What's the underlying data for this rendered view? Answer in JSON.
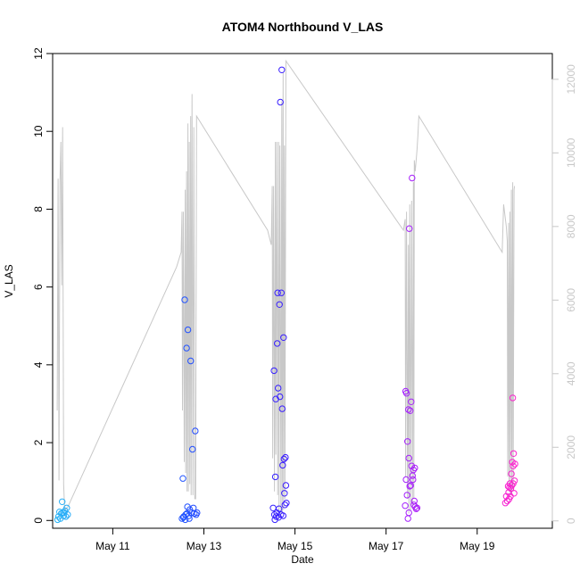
{
  "chart_data": {
    "type": "scatter",
    "title": "ATOM4 Northbound V_LAS",
    "xlabel": "Date",
    "ylabel": "V_LAS",
    "xlim": [
      9.68,
      20.65
    ],
    "ylim": [
      -0.2,
      12.0
    ],
    "yticks": [
      0,
      2,
      4,
      6,
      8,
      10,
      12
    ],
    "xticks": [
      {
        "value": 11,
        "label": "May 11"
      },
      {
        "value": 13,
        "label": "May 13"
      },
      {
        "value": 15,
        "label": "May 15"
      },
      {
        "value": 17,
        "label": "May 17"
      },
      {
        "value": 19,
        "label": "May 19"
      }
    ],
    "y2_range": [
      -200,
      12700
    ],
    "y2ticks": [
      0,
      2000,
      4000,
      6000,
      8000,
      10000,
      12000
    ],
    "grid": false,
    "color_gradient": [
      "#29b6f6",
      "#1e5bff",
      "#3a1cff",
      "#a020ff",
      "#ff22cc"
    ],
    "points": [
      [
        9.79,
        0.02
      ],
      [
        9.81,
        0.1
      ],
      [
        9.83,
        0.22
      ],
      [
        9.85,
        0.05
      ],
      [
        9.87,
        0.18
      ],
      [
        9.89,
        0.48
      ],
      [
        9.9,
        0.2
      ],
      [
        9.92,
        0.12
      ],
      [
        9.93,
        0.2
      ],
      [
        9.95,
        0.25
      ],
      [
        9.97,
        0.1
      ],
      [
        9.99,
        0.32
      ],
      [
        10.01,
        0.15
      ],
      [
        12.52,
        0.05
      ],
      [
        12.54,
        1.08
      ],
      [
        12.56,
        0.1
      ],
      [
        12.58,
        5.67
      ],
      [
        12.6,
        0.15
      ],
      [
        12.62,
        4.43
      ],
      [
        12.64,
        0.35
      ],
      [
        12.65,
        4.9
      ],
      [
        12.67,
        0.12
      ],
      [
        12.69,
        0.28
      ],
      [
        12.71,
        4.1
      ],
      [
        12.73,
        0.2
      ],
      [
        12.75,
        1.83
      ],
      [
        12.77,
        0.32
      ],
      [
        12.79,
        0.18
      ],
      [
        12.81,
        2.3
      ],
      [
        12.83,
        0.15
      ],
      [
        12.85,
        0.2
      ],
      [
        12.55,
        0.08
      ],
      [
        12.59,
        0.02
      ],
      [
        12.63,
        0.18
      ],
      [
        12.68,
        0.05
      ],
      [
        14.52,
        0.32
      ],
      [
        14.54,
        3.85
      ],
      [
        14.55,
        0.15
      ],
      [
        14.57,
        1.12
      ],
      [
        14.58,
        3.12
      ],
      [
        14.6,
        0.2
      ],
      [
        14.61,
        4.55
      ],
      [
        14.62,
        5.85
      ],
      [
        14.63,
        3.4
      ],
      [
        14.64,
        0.08
      ],
      [
        14.66,
        5.55
      ],
      [
        14.67,
        3.18
      ],
      [
        14.68,
        10.75
      ],
      [
        14.69,
        0.15
      ],
      [
        14.7,
        5.85
      ],
      [
        14.71,
        11.58
      ],
      [
        14.72,
        2.87
      ],
      [
        14.73,
        1.42
      ],
      [
        14.74,
        0.12
      ],
      [
        14.75,
        4.7
      ],
      [
        14.76,
        1.58
      ],
      [
        14.78,
        0.4
      ],
      [
        14.79,
        1.62
      ],
      [
        14.8,
        0.9
      ],
      [
        14.81,
        0.45
      ],
      [
        14.56,
        0.02
      ],
      [
        14.59,
        0.1
      ],
      [
        14.65,
        0.3
      ],
      [
        14.77,
        0.7
      ],
      [
        17.42,
        0.38
      ],
      [
        17.43,
        3.32
      ],
      [
        17.44,
        1.05
      ],
      [
        17.45,
        3.27
      ],
      [
        17.46,
        0.65
      ],
      [
        17.47,
        2.03
      ],
      [
        17.48,
        0.05
      ],
      [
        17.49,
        2.85
      ],
      [
        17.5,
        1.6
      ],
      [
        17.51,
        7.5
      ],
      [
        17.52,
        0.88
      ],
      [
        17.53,
        2.82
      ],
      [
        17.55,
        3.05
      ],
      [
        17.56,
        1.4
      ],
      [
        17.57,
        8.8
      ],
      [
        17.58,
        1.15
      ],
      [
        17.59,
        1.05
      ],
      [
        17.6,
        1.3
      ],
      [
        17.62,
        0.5
      ],
      [
        17.63,
        1.35
      ],
      [
        17.64,
        0.35
      ],
      [
        17.66,
        0.3
      ],
      [
        17.68,
        0.32
      ],
      [
        17.5,
        0.2
      ],
      [
        17.54,
        0.9
      ],
      [
        17.61,
        0.4
      ],
      [
        19.62,
        0.45
      ],
      [
        19.64,
        0.62
      ],
      [
        19.66,
        0.5
      ],
      [
        19.68,
        0.88
      ],
      [
        19.7,
        0.55
      ],
      [
        19.72,
        0.95
      ],
      [
        19.73,
        0.62
      ],
      [
        19.74,
        0.82
      ],
      [
        19.75,
        1.2
      ],
      [
        19.76,
        0.9
      ],
      [
        19.77,
        1.5
      ],
      [
        19.78,
        3.15
      ],
      [
        19.79,
        1.4
      ],
      [
        19.8,
        1.72
      ],
      [
        19.81,
        0.7
      ],
      [
        19.82,
        1.02
      ],
      [
        19.83,
        1.45
      ],
      [
        19.69,
        0.72
      ],
      [
        19.71,
        0.85
      ],
      [
        19.79,
        0.95
      ]
    ],
    "background_series": [
      [
        9.78,
        3000
      ],
      [
        9.8,
        9300
      ],
      [
        9.82,
        1100
      ],
      [
        9.84,
        9200
      ],
      [
        9.86,
        10300
      ],
      [
        9.88,
        6400
      ],
      [
        9.9,
        10700
      ],
      [
        9.92,
        1000
      ],
      [
        9.94,
        400
      ],
      [
        9.96,
        300
      ],
      [
        10.02,
        400
      ],
      [
        12.4,
        6900
      ],
      [
        12.5,
        7300
      ],
      [
        12.52,
        8400
      ],
      [
        12.53,
        3000
      ],
      [
        12.55,
        8400
      ],
      [
        12.57,
        1600
      ],
      [
        12.59,
        9000
      ],
      [
        12.6,
        1300
      ],
      [
        12.62,
        9500
      ],
      [
        12.63,
        800
      ],
      [
        12.65,
        10800
      ],
      [
        12.66,
        800
      ],
      [
        12.68,
        10300
      ],
      [
        12.69,
        1000
      ],
      [
        12.71,
        11000
      ],
      [
        12.72,
        700
      ],
      [
        12.74,
        11600
      ],
      [
        12.76,
        700
      ],
      [
        12.78,
        10700
      ],
      [
        12.8,
        600
      ],
      [
        12.82,
        600
      ],
      [
        12.84,
        11000
      ],
      [
        14.4,
        7900
      ],
      [
        14.48,
        7500
      ],
      [
        14.5,
        9100
      ],
      [
        14.51,
        1700
      ],
      [
        14.53,
        9100
      ],
      [
        14.55,
        800
      ],
      [
        14.57,
        10300
      ],
      [
        14.58,
        1800
      ],
      [
        14.6,
        10300
      ],
      [
        14.62,
        700
      ],
      [
        14.64,
        10300
      ],
      [
        14.65,
        200
      ],
      [
        14.67,
        10200
      ],
      [
        14.69,
        200
      ],
      [
        14.71,
        11400
      ],
      [
        14.72,
        200
      ],
      [
        14.74,
        12200
      ],
      [
        14.75,
        300
      ],
      [
        14.77,
        10200
      ],
      [
        14.78,
        600
      ],
      [
        14.8,
        12500
      ],
      [
        17.38,
        7900
      ],
      [
        17.42,
        8200
      ],
      [
        17.43,
        1200
      ],
      [
        17.45,
        8400
      ],
      [
        17.47,
        600
      ],
      [
        17.49,
        7500
      ],
      [
        17.5,
        200
      ],
      [
        17.52,
        8600
      ],
      [
        17.54,
        300
      ],
      [
        17.56,
        8700
      ],
      [
        17.58,
        400
      ],
      [
        17.6,
        9200
      ],
      [
        17.61,
        600
      ],
      [
        17.62,
        9800
      ],
      [
        17.64,
        9500
      ],
      [
        17.66,
        9800
      ],
      [
        17.68,
        10100
      ],
      [
        17.7,
        10500
      ],
      [
        17.72,
        11000
      ],
      [
        19.55,
        7300
      ],
      [
        19.58,
        8600
      ],
      [
        19.6,
        8400
      ],
      [
        19.62,
        8200
      ],
      [
        19.64,
        8000
      ],
      [
        19.66,
        7600
      ],
      [
        19.67,
        1200
      ],
      [
        19.69,
        8100
      ],
      [
        19.7,
        900
      ],
      [
        19.72,
        8400
      ],
      [
        19.73,
        700
      ],
      [
        19.75,
        9000
      ],
      [
        19.76,
        700
      ],
      [
        19.78,
        9200
      ],
      [
        19.79,
        800
      ],
      [
        19.81,
        9000
      ],
      [
        19.82,
        9100
      ]
    ]
  }
}
